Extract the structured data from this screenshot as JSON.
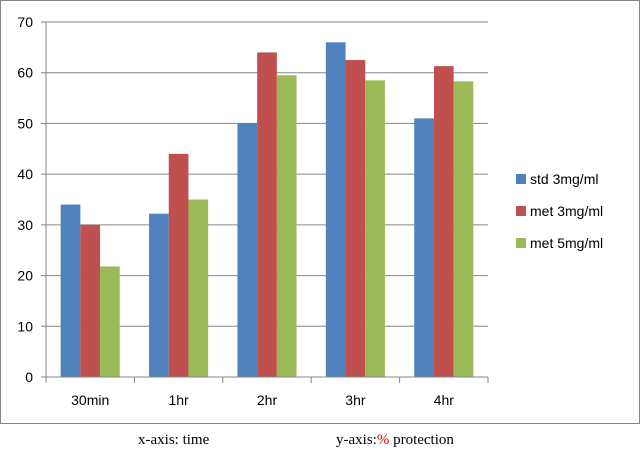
{
  "chart_data": {
    "type": "bar",
    "categories": [
      "30min",
      "1hr",
      "2hr",
      "3hr",
      "4hr"
    ],
    "series": [
      {
        "name": "std 3mg/ml",
        "color": "#4f81bd",
        "values": [
          34,
          32.2,
          50,
          66,
          51
        ]
      },
      {
        "name": "met 3mg/ml",
        "color": "#c0504d",
        "values": [
          30,
          44,
          64,
          62.5,
          61.3
        ]
      },
      {
        "name": "met 5mg/ml",
        "color": "#9bbb59",
        "values": [
          21.8,
          35,
          59.5,
          58.5,
          58.3
        ]
      }
    ],
    "ylim": [
      0,
      70
    ],
    "yticks": [
      0,
      10,
      20,
      30,
      40,
      50,
      60,
      70
    ],
    "grid": true,
    "legend": "right"
  },
  "caption": {
    "x_prefix": "x-axis: time",
    "y_prefix": "y-axis:",
    "y_percent": "%",
    "y_suffix": " protection"
  }
}
